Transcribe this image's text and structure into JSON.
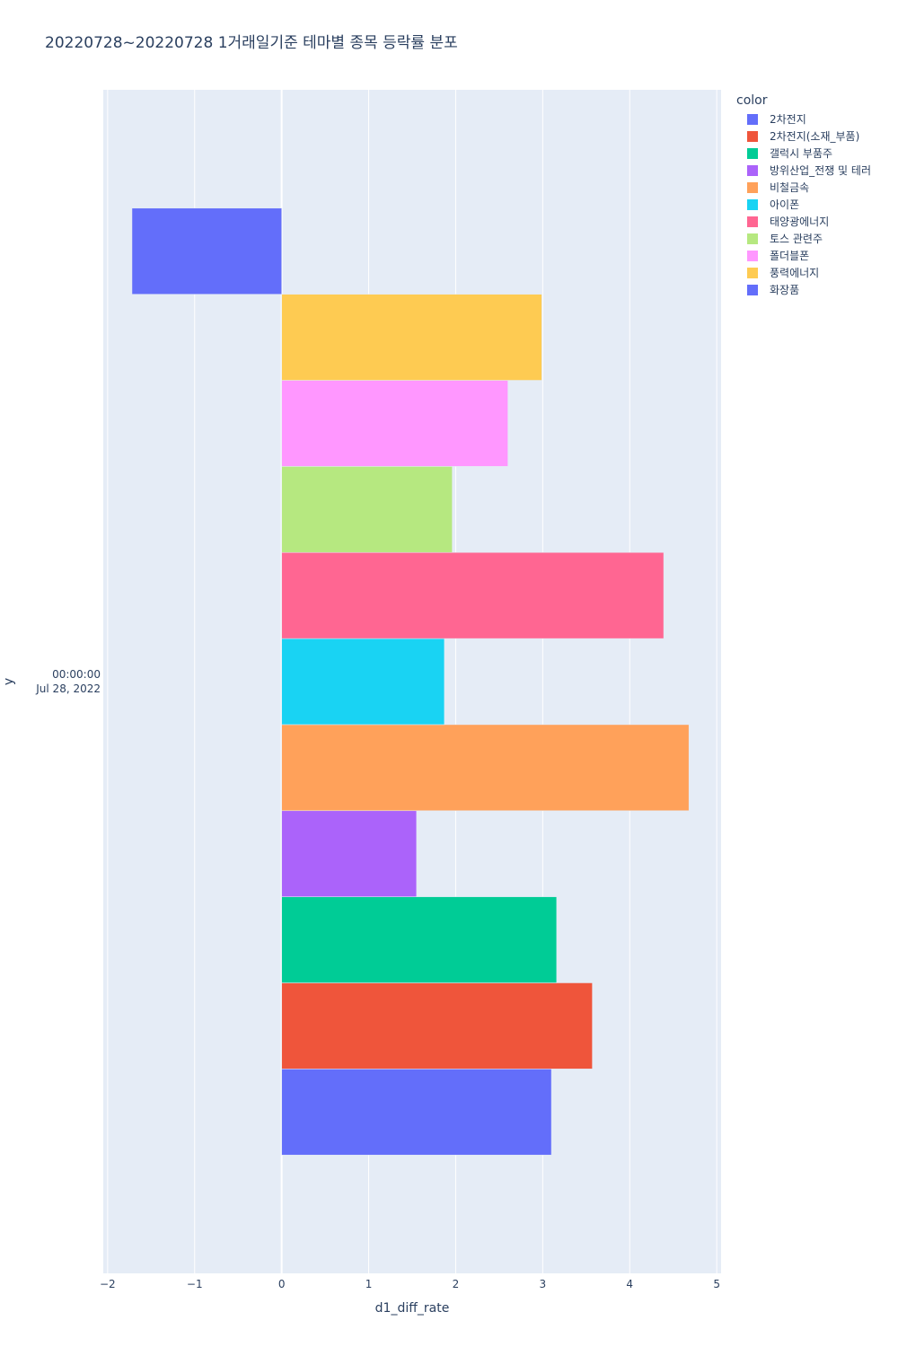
{
  "title": "20220728~20220728 1거래일기준 테마별 종목 등락률 분포",
  "chart_data": {
    "type": "bar",
    "orientation": "horizontal",
    "barmode": "group",
    "xlabel": "d1_diff_rate",
    "ylabel": "y",
    "xlim": [
      -2.05,
      5.05
    ],
    "xticks": [
      -2,
      -1,
      0,
      1,
      2,
      3,
      4,
      5
    ],
    "y_category": "00:00:00\nJul 28, 2022",
    "y_category_lines": [
      "00:00:00",
      "Jul 28, 2022"
    ],
    "grid": true,
    "legend_title": "color",
    "legend_position": "top-right",
    "series": [
      {
        "name": "2차전지",
        "value": 3.1,
        "color": "#636efa"
      },
      {
        "name": "2차전지(소재_부품)",
        "value": 3.57,
        "color": "#EF553B"
      },
      {
        "name": "갤럭시 부품주",
        "value": 3.16,
        "color": "#00cc96"
      },
      {
        "name": "방위산업_전쟁 및 테러",
        "value": 1.55,
        "color": "#ab63fa"
      },
      {
        "name": "비철금속",
        "value": 4.68,
        "color": "#FFA15A"
      },
      {
        "name": "아이폰",
        "value": 1.87,
        "color": "#19d3f3"
      },
      {
        "name": "태양광에너지",
        "value": 4.39,
        "color": "#FF6692"
      },
      {
        "name": "토스 관련주",
        "value": 1.96,
        "color": "#B6E880"
      },
      {
        "name": "폴더블폰",
        "value": 2.6,
        "color": "#FF97FF"
      },
      {
        "name": "풍력에너지",
        "value": 2.99,
        "color": "#FECB52"
      },
      {
        "name": "화장품",
        "value": -1.72,
        "color": "#636efa"
      }
    ]
  },
  "colors": {
    "plot_background": "#E5ECF6",
    "grid": "#ffffff",
    "text": "#2a3f5f"
  }
}
